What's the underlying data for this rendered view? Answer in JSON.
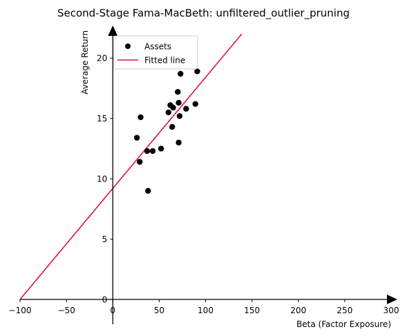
{
  "chart_data": {
    "type": "scatter",
    "title": "Second-Stage Fama-MacBeth: unfiltered_outlier_pruning",
    "xlabel": "Beta (Factor Exposure)",
    "ylabel": "Average Return",
    "xlim": [
      -100,
      300
    ],
    "ylim": [
      0,
      22.3
    ],
    "x_ticks": [
      -100,
      -50,
      0,
      50,
      100,
      150,
      200,
      250,
      300
    ],
    "y_ticks": [
      0,
      5,
      10,
      15,
      20
    ],
    "x_tick_labels": [
      "−100",
      "−50",
      "0",
      "50",
      "100",
      "150",
      "200",
      "250",
      "300"
    ],
    "y_tick_labels": [
      "0",
      "5",
      "10",
      "15",
      "20"
    ],
    "grid": false,
    "legend": {
      "position": "top-left",
      "entries": [
        "Assets",
        "Fitted line"
      ]
    },
    "series": [
      {
        "name": "Assets",
        "kind": "scatter",
        "color": "#000000",
        "points": [
          {
            "x": 26,
            "y": 13.4
          },
          {
            "x": 29,
            "y": 11.4
          },
          {
            "x": 30,
            "y": 15.1
          },
          {
            "x": 37,
            "y": 12.3
          },
          {
            "x": 38,
            "y": 9.0
          },
          {
            "x": 43,
            "y": 12.3
          },
          {
            "x": 52,
            "y": 12.5
          },
          {
            "x": 60,
            "y": 15.5
          },
          {
            "x": 62,
            "y": 16.1
          },
          {
            "x": 64,
            "y": 14.3
          },
          {
            "x": 65,
            "y": 15.9
          },
          {
            "x": 70,
            "y": 17.2
          },
          {
            "x": 71,
            "y": 16.3
          },
          {
            "x": 71,
            "y": 13.0
          },
          {
            "x": 72,
            "y": 15.2
          },
          {
            "x": 73,
            "y": 18.7
          },
          {
            "x": 79,
            "y": 15.8
          },
          {
            "x": 89,
            "y": 16.2
          },
          {
            "x": 91,
            "y": 18.9
          }
        ]
      },
      {
        "name": "Fitted line",
        "kind": "line",
        "color": "#dc143c",
        "points": [
          {
            "x": -100,
            "y": 0.0
          },
          {
            "x": 139,
            "y": 22.0
          }
        ]
      }
    ]
  }
}
